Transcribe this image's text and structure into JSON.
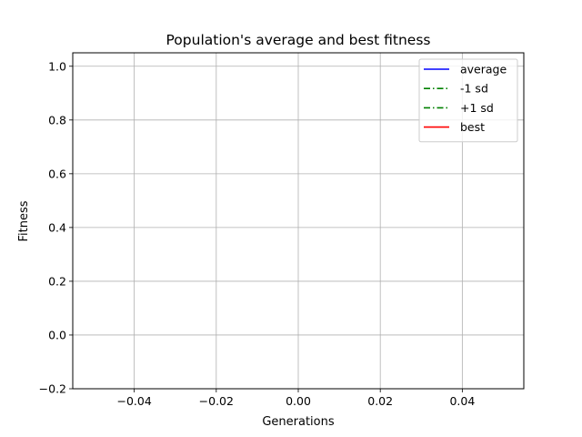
{
  "chart_data": {
    "type": "line",
    "title": "Population's average and best fitness",
    "xlabel": "Generations",
    "ylabel": "Fitness",
    "xlim": [
      -0.055,
      0.055
    ],
    "ylim": [
      -0.2,
      1.05
    ],
    "xticks": [
      -0.04,
      -0.02,
      0.0,
      0.02,
      0.04
    ],
    "xtick_labels": [
      "−0.04",
      "−0.02",
      "0.00",
      "0.02",
      "0.04"
    ],
    "yticks": [
      -0.2,
      0.0,
      0.2,
      0.4,
      0.6,
      0.8,
      1.0
    ],
    "ytick_labels": [
      "−0.2",
      "0.0",
      "0.2",
      "0.4",
      "0.6",
      "0.8",
      "1.0"
    ],
    "grid": true,
    "legend_position": "top-right",
    "series": [
      {
        "name": "average",
        "color": "#0000ff",
        "linestyle": "solid",
        "x": [],
        "y": []
      },
      {
        "name": "-1 sd",
        "color": "#008000",
        "linestyle": "dashdot",
        "x": [],
        "y": []
      },
      {
        "name": "+1 sd",
        "color": "#008000",
        "linestyle": "dashdot",
        "x": [],
        "y": []
      },
      {
        "name": "best",
        "color": "#ff0000",
        "linestyle": "solid",
        "x": [],
        "y": []
      }
    ]
  }
}
